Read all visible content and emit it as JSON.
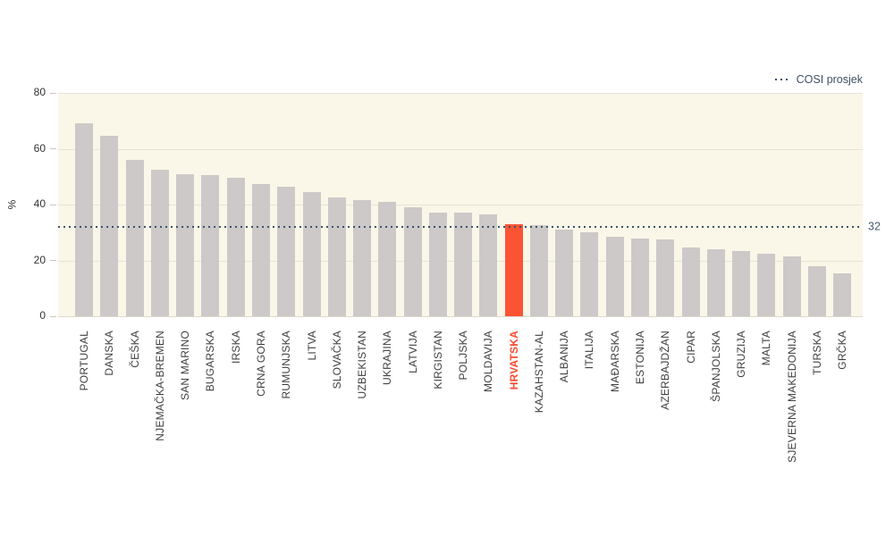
{
  "chart_data": {
    "type": "bar",
    "title": "",
    "xlabel": "",
    "ylabel": "%",
    "ylim": [
      0,
      80
    ],
    "yticks": [
      0,
      20,
      40,
      60,
      80
    ],
    "grid": true,
    "legend_label": "COSI prosjek",
    "legend_position": "top-right",
    "ref_line": {
      "value": 32,
      "label": "32",
      "style": "dotted"
    },
    "highlight_category": "HRVATSKA",
    "categories": [
      "PORTUGAL",
      "DANSKA",
      "ČEŠKA",
      "NJEMAČKA-BREMEN",
      "SAN MARINO",
      "BUGARSKA",
      "IRSKA",
      "CRNA GORA",
      "RUMUNJSKA",
      "LITVA",
      "SLOVAČKA",
      "UZBEKISTAN",
      "UKRAJINA",
      "LATVIJA",
      "KIRGISTAN",
      "POLJSKA",
      "MOLDAVIJA",
      "HRVATSKA",
      "KAZAHSTAN-AL",
      "ALBANIJA",
      "ITALIJA",
      "MAĐARSKA",
      "ESTONIJA",
      "AZERBAJDŽAN",
      "CIPAR",
      "ŠPANJOLSKA",
      "GRUZIJA",
      "MALTA",
      "SJEVERNA MAKEDONIJA",
      "TURSKA",
      "GRČKA"
    ],
    "values": [
      69,
      64.5,
      56,
      52.5,
      51,
      50.5,
      49.5,
      47.5,
      46.5,
      44.5,
      42.5,
      41.5,
      41,
      39,
      37,
      37,
      36.5,
      33,
      32.5,
      31,
      30,
      28.5,
      28,
      27.5,
      24.5,
      24,
      23.5,
      22.5,
      21.5,
      18,
      15.5
    ]
  },
  "colors": {
    "bar": "#cdc9c8",
    "highlight_bar": "#fb5434",
    "highlight_label": "#fb4a2e",
    "plot_background": "#faf7e9",
    "gridline": "#e7e4d6",
    "reference_line": "#3d5166",
    "legend_text": "#3d5166",
    "axis_text": "#333333",
    "category_text": "#404040"
  }
}
